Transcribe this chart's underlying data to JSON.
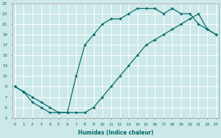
{
  "xlabel": "Humidex (Indice chaleur)",
  "bg_color": "#cce8e8",
  "line_color": "#006868",
  "curve1_x": [
    0,
    1,
    2,
    3,
    4,
    5,
    6,
    7,
    8,
    9,
    10,
    11,
    12,
    13,
    14,
    15,
    16,
    17,
    18,
    19,
    20,
    21,
    22,
    23
  ],
  "curve1_y": [
    9,
    8,
    7,
    6,
    5,
    4,
    4,
    11,
    17,
    19,
    21,
    22,
    22,
    23,
    24,
    24,
    24,
    23,
    24,
    23,
    23,
    21,
    20,
    19
  ],
  "curve2_x": [
    0,
    1,
    2,
    3,
    4,
    5,
    6,
    7,
    8,
    9,
    10,
    11,
    12,
    13,
    14,
    15,
    16,
    17,
    18,
    19,
    20,
    21,
    22,
    23
  ],
  "curve2_y": [
    9,
    8,
    6,
    5,
    4,
    4,
    4,
    4,
    4,
    5,
    7,
    9,
    11,
    13,
    15,
    17,
    18,
    19,
    20,
    21,
    22,
    23,
    20,
    19
  ],
  "xlim": [
    0,
    23
  ],
  "ylim": [
    3,
    25
  ],
  "xticks": [
    0,
    1,
    2,
    3,
    4,
    5,
    6,
    7,
    8,
    9,
    10,
    11,
    12,
    13,
    14,
    15,
    16,
    17,
    18,
    19,
    20,
    21,
    22,
    23
  ],
  "yticks": [
    3,
    5,
    7,
    9,
    11,
    13,
    15,
    17,
    19,
    21,
    23,
    25
  ]
}
